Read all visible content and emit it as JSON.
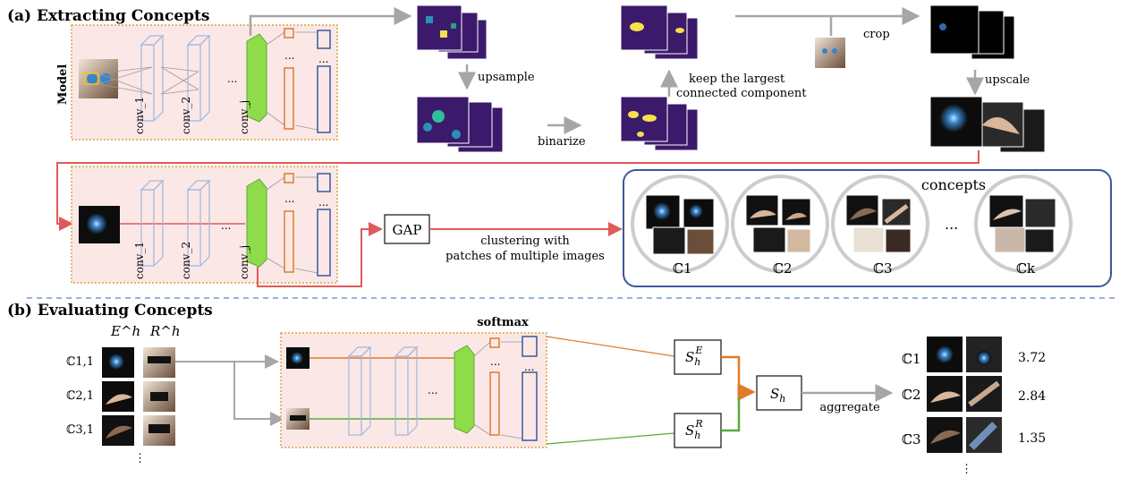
{
  "section_a_title": "(a) Extracting Concepts",
  "section_b_title": "(b) Evaluating Concepts",
  "model_label": "Model",
  "conv_labels": [
    "conv_1",
    "conv_2",
    "conv_j"
  ],
  "ellipsis": "...",
  "steps": {
    "upsample": "upsample",
    "binarize": "binarize",
    "keep_line1": "keep the largest",
    "keep_line2": "connected component",
    "crop": "crop",
    "upscale": "upscale"
  },
  "gap_label": "GAP",
  "clustering_line1": "clustering with",
  "clustering_line2": "patches of multiple images",
  "concepts_title": "concepts",
  "concept_labels": [
    "ℂ1",
    "ℂ2",
    "ℂ3",
    "ℂk"
  ],
  "col_headers": [
    "E^h",
    "R^h"
  ],
  "row_labels": [
    "ℂ1,1",
    "ℂ2,1",
    "ℂ3,1"
  ],
  "softmax_label": "softmax",
  "score_boxes": [
    "S_h^E",
    "S_h^R",
    "S_h"
  ],
  "aggregate_label": "aggregate",
  "ranking": [
    {
      "label": "ℂ1",
      "score": "3.72"
    },
    {
      "label": "ℂ2",
      "score": "2.84"
    },
    {
      "label": "ℂ3",
      "score": "1.35"
    }
  ],
  "colors": {
    "panel_fill": "#fbe8e6",
    "panel_border": "#d9a441",
    "red_arrow": "#e05a5a",
    "gray_arrow": "#a6a6a6",
    "orange": "#e07b2a",
    "green": "#5aaa3a",
    "blue_box": "#3b5998",
    "light_blue": "#9db7e0",
    "green_block": "#8fdc4a",
    "dashed_divider": "#6f9bd6",
    "heatmap_bg": "#3b1a6b",
    "heatmap_yellow": "#f7e04a"
  }
}
